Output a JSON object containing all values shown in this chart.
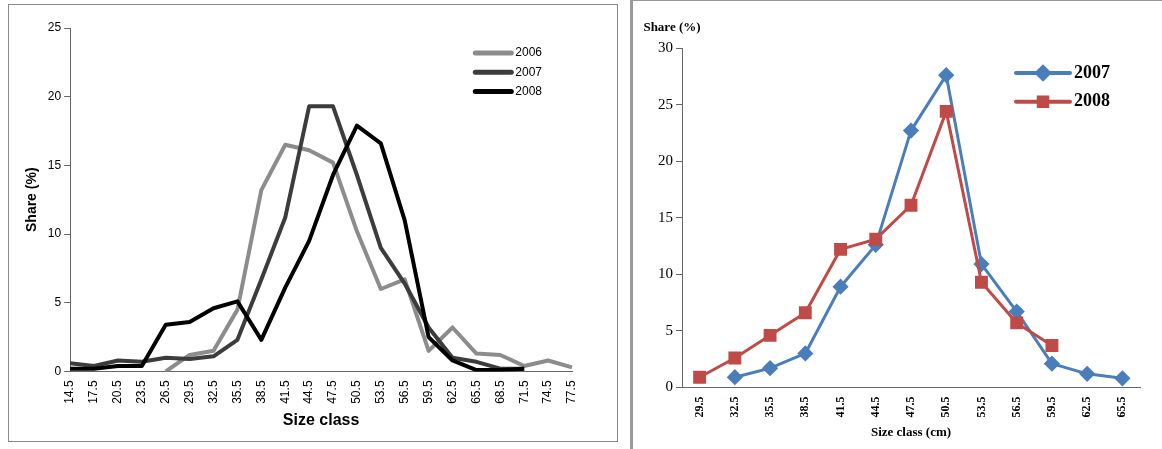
{
  "chart_data": [
    {
      "type": "line",
      "xlabel": "Size class",
      "ylabel": "Share (%)",
      "categories": [
        "14.5",
        "17.5",
        "20.5",
        "23.5",
        "26.5",
        "29.5",
        "32.5",
        "35.5",
        "38.5",
        "41.5",
        "44.5",
        "47.5",
        "50.5",
        "53.5",
        "56.5",
        "59.5",
        "62.5",
        "65.5",
        "68.5",
        "71.5",
        "74.5",
        "77.5"
      ],
      "series": [
        {
          "name": "2006",
          "color": "#8c8c8c",
          "values": [
            null,
            null,
            null,
            null,
            0,
            1.2,
            1.5,
            4.5,
            13.2,
            16.5,
            16.1,
            15.2,
            10.2,
            6.0,
            6.7,
            1.5,
            3.2,
            1.3,
            1.2,
            0.4,
            0.8,
            0.3
          ]
        },
        {
          "name": "2007",
          "color": "#3c3c3c",
          "values": [
            0.6,
            0.4,
            0.8,
            0.7,
            1.0,
            0.9,
            1.1,
            2.3,
            6.7,
            11.2,
            19.3,
            19.3,
            14.3,
            9.0,
            6.4,
            3.2,
            1.0,
            0.7,
            0.2,
            0.2,
            null,
            null
          ]
        },
        {
          "name": "2008",
          "color": "#000000",
          "values": [
            0.2,
            0.2,
            0.4,
            0.4,
            3.4,
            3.6,
            4.6,
            5.1,
            2.3,
            6.1,
            9.5,
            14.3,
            17.9,
            16.6,
            11.0,
            2.5,
            0.8,
            0.1,
            0.1,
            0.2,
            null,
            null
          ]
        }
      ],
      "ylim": [
        0,
        25
      ],
      "yticks": [
        0,
        5,
        10,
        15,
        20,
        25
      ],
      "grid": false,
      "legend": "top right",
      "marker": "none",
      "line_style": "solid"
    },
    {
      "type": "line",
      "xlabel": "Size class (cm)",
      "ylabel": "Share (%)",
      "categories": [
        "29.5",
        "32.5",
        "35.5",
        "38.5",
        "41.5",
        "44.5",
        "47.5",
        "50.5",
        "53.5",
        "56.5",
        "59.5",
        "62.5",
        "65.5"
      ],
      "series": [
        {
          "name": "2007",
          "color": "#4a7ebb",
          "marker": "diamond",
          "values": [
            null,
            0.9,
            1.7,
            3.0,
            8.9,
            12.6,
            22.7,
            27.6,
            10.9,
            6.7,
            2.1,
            1.2,
            0.8
          ]
        },
        {
          "name": "2008",
          "color": "#be4b48",
          "marker": "square",
          "values": [
            0.9,
            2.6,
            4.6,
            6.6,
            12.2,
            13.1,
            16.1,
            24.4,
            9.3,
            5.7,
            3.7,
            null,
            null
          ]
        }
      ],
      "ylim": [
        0,
        30
      ],
      "yticks": [
        0,
        5,
        10,
        15,
        20,
        25,
        30
      ],
      "grid": false,
      "legend": "top right",
      "line_style": "solid"
    }
  ]
}
